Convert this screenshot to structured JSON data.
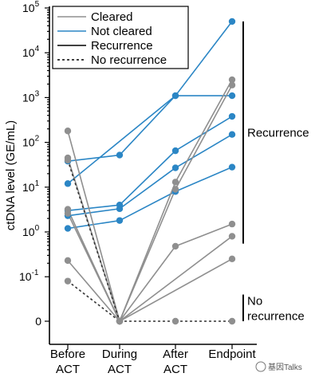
{
  "colors": {
    "cleared": "#8f8f8f",
    "not_cleared": "#2b86c5",
    "axis": "#000000"
  },
  "watermark": "基因Talks",
  "chart_data": {
    "type": "line",
    "categories": [
      "Before\nACT",
      "During\nACT",
      "After\nACT",
      "Endpoint"
    ],
    "ylabel": "ctDNA level (GE/mL)",
    "yscale": "log",
    "yticks": [
      {
        "value": 0,
        "label": "0"
      },
      {
        "value": 0.1,
        "label": "10",
        "sup": "-1"
      },
      {
        "value": 1,
        "label": "10",
        "sup": "0"
      },
      {
        "value": 10,
        "label": "10",
        "sup": "1"
      },
      {
        "value": 100,
        "label": "10",
        "sup": "2"
      },
      {
        "value": 1000,
        "label": "10",
        "sup": "3"
      },
      {
        "value": 10000,
        "label": "10",
        "sup": "4"
      },
      {
        "value": 100000,
        "label": "10",
        "sup": "5"
      }
    ],
    "legend": [
      {
        "label": "Cleared",
        "color": "#8f8f8f",
        "dash": false
      },
      {
        "label": "Not cleared",
        "color": "#2b86c5",
        "dash": false
      },
      {
        "label": "Recurrence",
        "color": "#000000",
        "dash": false
      },
      {
        "label": "No recurrence",
        "color": "#000000",
        "dash": true
      }
    ],
    "legend_position": "top-left",
    "brackets": [
      {
        "label": "Recurrence",
        "from": 50000,
        "to": 0.55
      },
      {
        "label": "No\nrecurrence",
        "from": 0.04,
        "to": 0
      }
    ],
    "series": [
      {
        "group": "not_cleared",
        "outcome": "recurrence",
        "values": [
          38,
          52,
          1100,
          1100
        ]
      },
      {
        "group": "not_cleared",
        "outcome": "recurrence",
        "values": [
          12,
          null,
          1100,
          50000
        ]
      },
      {
        "group": "not_cleared",
        "outcome": "recurrence",
        "values": [
          3,
          4,
          65,
          380
        ]
      },
      {
        "group": "not_cleared",
        "outcome": "recurrence",
        "values": [
          2.3,
          3.3,
          27,
          150
        ]
      },
      {
        "group": "not_cleared",
        "outcome": "recurrence",
        "values": [
          1.2,
          1.8,
          8,
          28
        ]
      },
      {
        "group": "cleared",
        "outcome": "recurrence",
        "values": [
          180,
          0,
          0.48,
          1.5
        ]
      },
      {
        "group": "cleared",
        "outcome": "recurrence",
        "values": [
          45,
          0,
          13,
          2500
        ]
      },
      {
        "group": "cleared",
        "outcome": "recurrence",
        "values": [
          3.2,
          0,
          9,
          1900
        ]
      },
      {
        "group": "cleared",
        "outcome": "recurrence",
        "values": [
          2.6,
          0,
          null,
          0.8
        ]
      },
      {
        "group": "cleared",
        "outcome": "recurrence",
        "values": [
          0.23,
          0,
          null,
          0.25
        ]
      },
      {
        "group": "cleared",
        "outcome": "no_recurrence",
        "values": [
          40,
          0,
          0,
          0
        ]
      },
      {
        "group": "cleared",
        "outcome": "no_recurrence",
        "values": [
          0.08,
          0,
          null,
          null
        ]
      }
    ]
  }
}
